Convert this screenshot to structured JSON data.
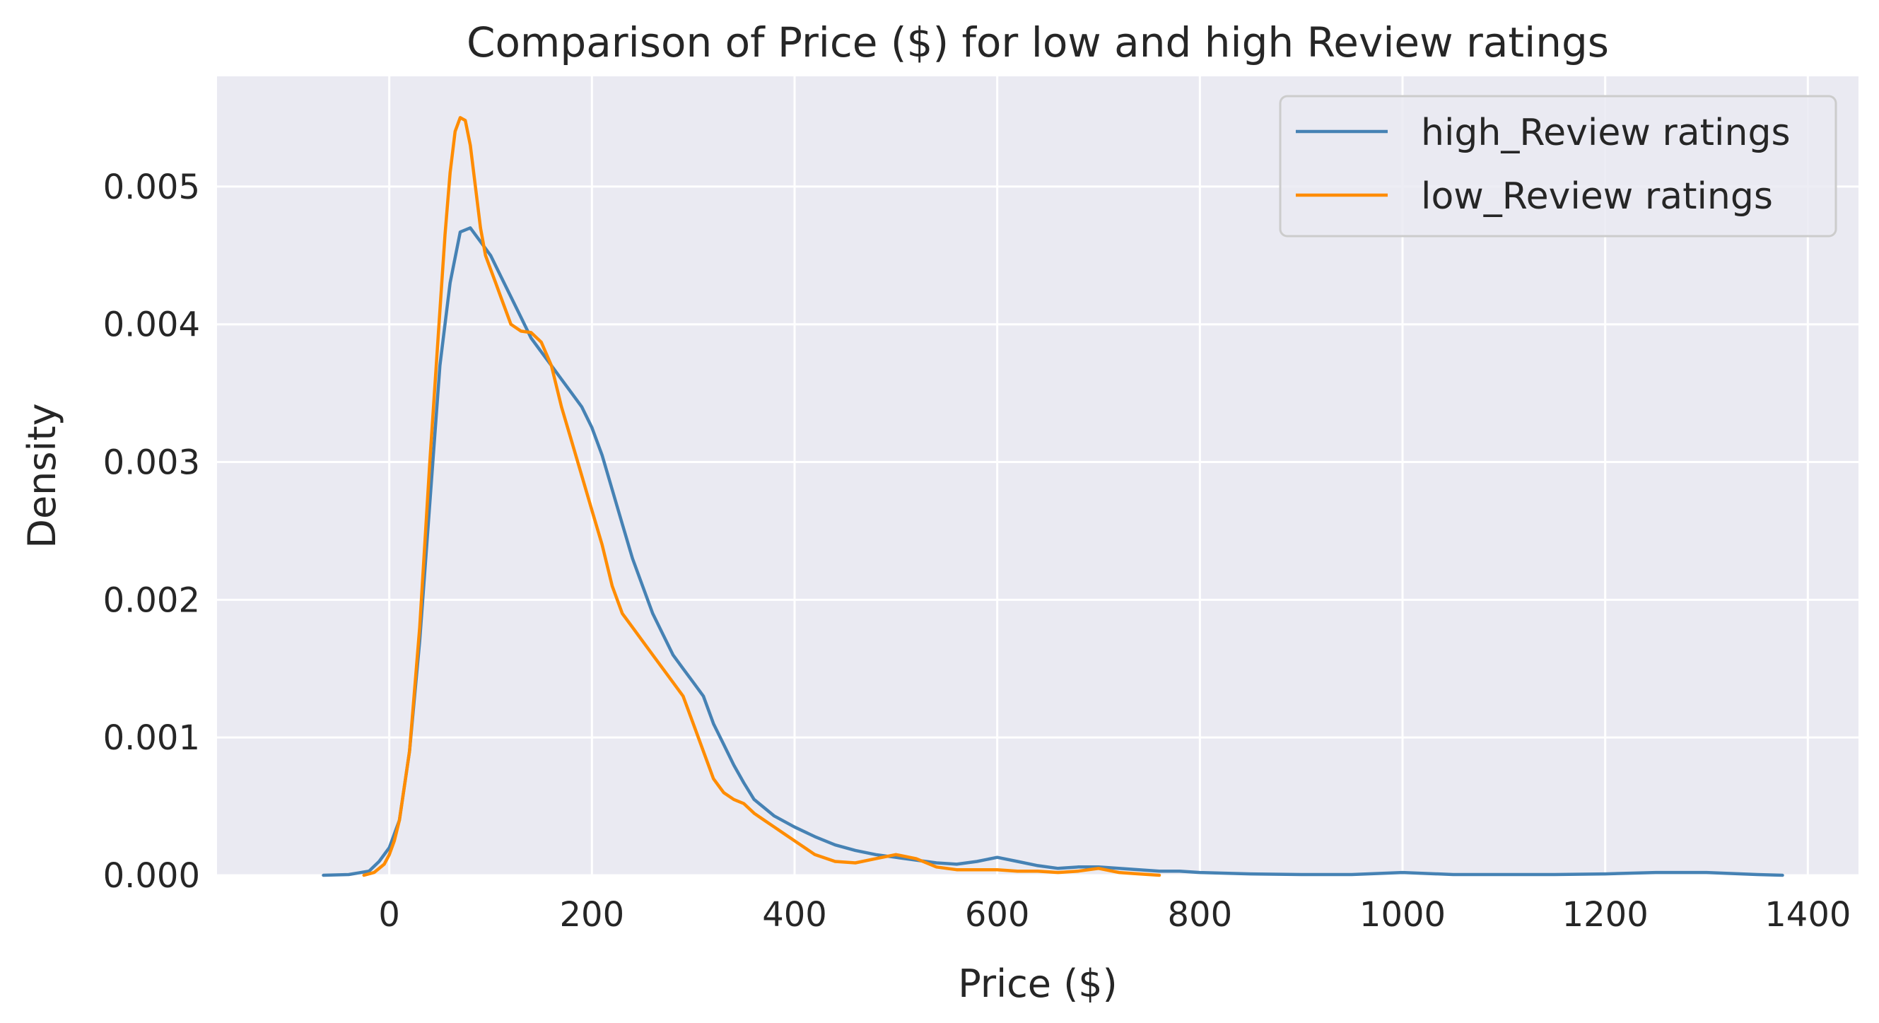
{
  "chart_data": {
    "type": "line",
    "title": "Comparison of Price ($) for low and high Review ratings",
    "xlabel": "Price ($)",
    "ylabel": "Density",
    "xlim": [
      -170,
      1450
    ],
    "ylim": [
      0,
      0.0058
    ],
    "xticks": [
      0,
      200,
      400,
      600,
      800,
      1000,
      1200,
      1400
    ],
    "yticks": [
      0.0,
      0.001,
      0.002,
      0.003,
      0.004,
      0.005
    ],
    "ytick_labels": [
      "0.000",
      "0.001",
      "0.002",
      "0.003",
      "0.004",
      "0.005"
    ],
    "grid": true,
    "legend_position": "top-right",
    "series": [
      {
        "name": "high_Review ratings",
        "color": "#4682b4",
        "x": [
          -65,
          -40,
          -20,
          -10,
          0,
          10,
          20,
          30,
          40,
          50,
          60,
          70,
          80,
          90,
          100,
          110,
          120,
          130,
          140,
          150,
          160,
          170,
          180,
          190,
          200,
          210,
          220,
          230,
          240,
          250,
          260,
          270,
          280,
          290,
          300,
          310,
          320,
          330,
          340,
          350,
          360,
          380,
          400,
          420,
          440,
          460,
          480,
          500,
          520,
          540,
          560,
          580,
          600,
          620,
          640,
          660,
          680,
          700,
          720,
          740,
          760,
          780,
          800,
          850,
          900,
          950,
          1000,
          1050,
          1100,
          1150,
          1200,
          1250,
          1300,
          1350,
          1375
        ],
        "y": [
          0,
          5e-06,
          3e-05,
          0.0001,
          0.0002,
          0.0004,
          0.0009,
          0.0017,
          0.0027,
          0.0037,
          0.0043,
          0.00467,
          0.0047,
          0.0046,
          0.0045,
          0.00435,
          0.0042,
          0.00405,
          0.0039,
          0.0038,
          0.0037,
          0.0036,
          0.0035,
          0.0034,
          0.00325,
          0.00305,
          0.0028,
          0.00255,
          0.0023,
          0.0021,
          0.0019,
          0.00175,
          0.0016,
          0.0015,
          0.0014,
          0.0013,
          0.0011,
          0.00095,
          0.0008,
          0.00067,
          0.00055,
          0.00043,
          0.00035,
          0.00028,
          0.00022,
          0.00018,
          0.00015,
          0.00013,
          0.00011,
          9e-05,
          8e-05,
          0.0001,
          0.00013,
          0.0001,
          7e-05,
          5e-05,
          6e-05,
          6e-05,
          5e-05,
          4e-05,
          3e-05,
          3e-05,
          2e-05,
          1e-05,
          5e-06,
          5e-06,
          2e-05,
          5e-06,
          5e-06,
          5e-06,
          1e-05,
          2e-05,
          2e-05,
          5e-06,
          0
        ]
      },
      {
        "name": "low_Review ratings",
        "color": "#ff8c00",
        "x": [
          -25,
          -15,
          -5,
          0,
          5,
          10,
          20,
          30,
          40,
          50,
          55,
          60,
          65,
          70,
          75,
          80,
          85,
          90,
          95,
          100,
          105,
          110,
          115,
          120,
          130,
          140,
          150,
          160,
          170,
          180,
          190,
          200,
          210,
          220,
          230,
          240,
          250,
          260,
          270,
          280,
          290,
          300,
          310,
          320,
          330,
          340,
          350,
          360,
          370,
          380,
          390,
          400,
          420,
          440,
          460,
          480,
          500,
          520,
          540,
          560,
          580,
          600,
          620,
          640,
          660,
          680,
          700,
          720,
          740,
          760
        ],
        "y": [
          0,
          2e-05,
          8e-05,
          0.00015,
          0.00025,
          0.0004,
          0.0009,
          0.0018,
          0.003,
          0.0041,
          0.00465,
          0.0051,
          0.0054,
          0.0055,
          0.00548,
          0.0053,
          0.005,
          0.0047,
          0.0045,
          0.0044,
          0.0043,
          0.0042,
          0.0041,
          0.004,
          0.00395,
          0.00394,
          0.00387,
          0.0037,
          0.0034,
          0.00315,
          0.0029,
          0.00265,
          0.0024,
          0.0021,
          0.0019,
          0.0018,
          0.0017,
          0.0016,
          0.0015,
          0.0014,
          0.0013,
          0.0011,
          0.0009,
          0.0007,
          0.0006,
          0.00055,
          0.00052,
          0.00045,
          0.0004,
          0.00035,
          0.0003,
          0.00025,
          0.00015,
          0.0001,
          9e-05,
          0.00012,
          0.00015,
          0.00012,
          6e-05,
          4e-05,
          4e-05,
          4e-05,
          3e-05,
          3e-05,
          2e-05,
          3e-05,
          5e-05,
          2e-05,
          1e-05,
          0
        ]
      }
    ]
  }
}
